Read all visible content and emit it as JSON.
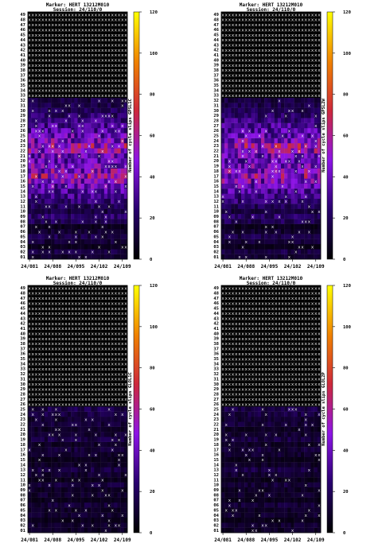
{
  "chart_data": [
    {
      "type": "heatmap",
      "title": "Marker: HERT 13212M010",
      "subtitle": "Session: 24/110/0",
      "ylabel": "",
      "colorbar_label": "Number of cycle slips GPSL1C",
      "colorbar_ticks": [
        0,
        20,
        40,
        60,
        80,
        100,
        120
      ],
      "zlim": [
        0,
        120
      ],
      "x_ticks": [
        "24/081",
        "24/088",
        "24/095",
        "24/102",
        "24/109"
      ],
      "y_categories": [
        "01",
        "02",
        "03",
        "04",
        "05",
        "06",
        "07",
        "08",
        "09",
        "10",
        "11",
        "12",
        "13",
        "14",
        "15",
        "16",
        "17",
        "18",
        "19",
        "20",
        "21",
        "22",
        "23",
        "24",
        "25",
        "26",
        "27",
        "28",
        "29",
        "30",
        "31",
        "32",
        "33",
        "34",
        "35",
        "36",
        "37",
        "38",
        "39",
        "40",
        "41",
        "42",
        "43",
        "44",
        "45",
        "46",
        "47",
        "48",
        "49"
      ],
      "x_start": "24/081",
      "x_end": "24/110",
      "missing_marker": "x",
      "missing_rows": [
        "33",
        "34",
        "35",
        "36",
        "37",
        "38",
        "39",
        "40",
        "41",
        "42",
        "43",
        "44",
        "45",
        "46",
        "47",
        "48",
        "49"
      ],
      "mean_row_level": [
        10,
        14,
        6,
        12,
        16,
        10,
        6,
        18,
        22,
        14,
        18,
        24,
        28,
        32,
        38,
        44,
        50,
        46,
        42,
        36,
        40,
        48,
        52,
        44,
        38,
        34,
        30,
        26,
        22,
        18,
        16,
        14,
        0,
        0,
        0,
        0,
        0,
        0,
        0,
        0,
        0,
        0,
        0,
        0,
        0,
        0,
        0,
        0,
        0
      ]
    },
    {
      "type": "heatmap",
      "title": "Marker: HERT 13212M010",
      "subtitle": "Session: 24/110/0",
      "ylabel": "",
      "colorbar_label": "Number of cycle slips GPSL2W",
      "colorbar_ticks": [
        0,
        20,
        40,
        60,
        80,
        100,
        120
      ],
      "zlim": [
        0,
        120
      ],
      "x_ticks": [
        "24/081",
        "24/088",
        "24/095",
        "24/102",
        "24/109"
      ],
      "y_categories": [
        "01",
        "02",
        "03",
        "04",
        "05",
        "06",
        "07",
        "08",
        "09",
        "10",
        "11",
        "12",
        "13",
        "14",
        "15",
        "16",
        "17",
        "18",
        "19",
        "20",
        "21",
        "22",
        "23",
        "24",
        "25",
        "26",
        "27",
        "28",
        "29",
        "30",
        "31",
        "32",
        "33",
        "34",
        "35",
        "36",
        "37",
        "38",
        "39",
        "40",
        "41",
        "42",
        "43",
        "44",
        "45",
        "46",
        "47",
        "48",
        "49"
      ],
      "x_start": "24/081",
      "x_end": "24/110",
      "missing_marker": "x",
      "missing_rows": [
        "33",
        "34",
        "35",
        "36",
        "37",
        "38",
        "39",
        "40",
        "41",
        "42",
        "43",
        "44",
        "45",
        "46",
        "47",
        "48",
        "49"
      ],
      "mean_row_level": [
        10,
        14,
        6,
        12,
        16,
        10,
        6,
        18,
        22,
        14,
        18,
        24,
        28,
        32,
        38,
        44,
        50,
        46,
        42,
        36,
        40,
        48,
        52,
        44,
        38,
        34,
        30,
        26,
        22,
        18,
        16,
        14,
        0,
        0,
        0,
        0,
        0,
        0,
        0,
        0,
        0,
        0,
        0,
        0,
        0,
        0,
        0,
        0,
        0
      ]
    },
    {
      "type": "heatmap",
      "title": "Marker: HERT 13212M010",
      "subtitle": "Session: 24/110/0",
      "ylabel": "",
      "colorbar_label": "Number of cycle slips GLOL1C",
      "colorbar_ticks": [
        0,
        20,
        40,
        60,
        80,
        100,
        120
      ],
      "zlim": [
        0,
        120
      ],
      "x_ticks": [
        "24/081",
        "24/088",
        "24/095",
        "24/102",
        "24/109"
      ],
      "y_categories": [
        "01",
        "02",
        "03",
        "04",
        "05",
        "06",
        "07",
        "08",
        "09",
        "10",
        "11",
        "12",
        "13",
        "14",
        "15",
        "16",
        "17",
        "18",
        "19",
        "20",
        "21",
        "22",
        "23",
        "24",
        "25",
        "26",
        "27",
        "28",
        "29",
        "30",
        "31",
        "32",
        "33",
        "34",
        "35",
        "36",
        "37",
        "38",
        "39",
        "40",
        "41",
        "42",
        "43",
        "44",
        "45",
        "46",
        "47",
        "48",
        "49"
      ],
      "x_start": "24/081",
      "x_end": "24/110",
      "missing_marker": "x",
      "missing_rows": [
        "26",
        "27",
        "28",
        "29",
        "30",
        "31",
        "32",
        "33",
        "34",
        "35",
        "36",
        "37",
        "38",
        "39",
        "40",
        "41",
        "42",
        "43",
        "44",
        "45",
        "46",
        "47",
        "48",
        "49"
      ],
      "mean_row_level": [
        8,
        10,
        6,
        10,
        8,
        12,
        6,
        10,
        8,
        12,
        6,
        10,
        14,
        8,
        6,
        10,
        12,
        8,
        14,
        10,
        8,
        12,
        10,
        14,
        16,
        0,
        0,
        0,
        0,
        0,
        0,
        0,
        0,
        0,
        0,
        0,
        0,
        0,
        0,
        0,
        0,
        0,
        0,
        0,
        0,
        0,
        0,
        0,
        0
      ]
    },
    {
      "type": "heatmap",
      "title": "Marker: HERT 13212M010",
      "subtitle": "Session: 24/110/0",
      "ylabel": "",
      "colorbar_label": "Number of cycle slips GLOL2P",
      "colorbar_ticks": [
        0,
        20,
        40,
        60,
        80,
        100,
        120
      ],
      "zlim": [
        0,
        120
      ],
      "x_ticks": [
        "24/081",
        "24/088",
        "24/095",
        "24/102",
        "24/109"
      ],
      "y_categories": [
        "01",
        "02",
        "03",
        "04",
        "05",
        "06",
        "07",
        "08",
        "09",
        "10",
        "11",
        "12",
        "13",
        "14",
        "15",
        "16",
        "17",
        "18",
        "19",
        "20",
        "21",
        "22",
        "23",
        "24",
        "25",
        "26",
        "27",
        "28",
        "29",
        "30",
        "31",
        "32",
        "33",
        "34",
        "35",
        "36",
        "37",
        "38",
        "39",
        "40",
        "41",
        "42",
        "43",
        "44",
        "45",
        "46",
        "47",
        "48",
        "49"
      ],
      "x_start": "24/081",
      "x_end": "24/110",
      "missing_marker": "x",
      "missing_rows": [
        "26",
        "27",
        "28",
        "29",
        "30",
        "31",
        "32",
        "33",
        "34",
        "35",
        "36",
        "37",
        "38",
        "39",
        "40",
        "41",
        "42",
        "43",
        "44",
        "45",
        "46",
        "47",
        "48",
        "49"
      ],
      "mean_row_level": [
        8,
        10,
        6,
        10,
        8,
        12,
        6,
        10,
        8,
        12,
        6,
        10,
        14,
        8,
        6,
        10,
        12,
        8,
        14,
        10,
        8,
        12,
        10,
        14,
        16,
        0,
        0,
        0,
        0,
        0,
        0,
        0,
        0,
        0,
        0,
        0,
        0,
        0,
        0,
        0,
        0,
        0,
        0,
        0,
        0,
        0,
        0,
        0,
        0
      ]
    }
  ]
}
